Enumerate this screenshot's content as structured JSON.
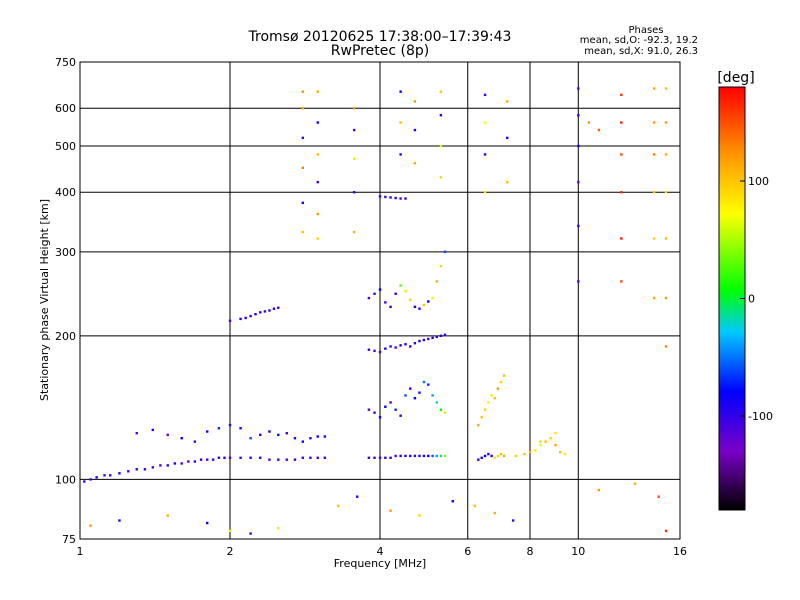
{
  "header": {
    "title_line1": "Tromsø 20120625 17:38:00–17:39:43",
    "title_line2": "RwPretec (8p)",
    "phase_title": "Phases",
    "phase_o": "mean, sd,O: -92.3, 19.2",
    "phase_x": "mean, sd,X:  91.0, 26.3"
  },
  "chart_data": {
    "type": "scatter",
    "title": "Tromsø 20120625 17:38:00–17:39:43",
    "subtitle": "RwPretec (8p)",
    "xlabel": "Frequency [MHz]",
    "ylabel": "Stationary phase Virtual Height [km]",
    "x_scale": "log",
    "y_scale": "log",
    "xlim": [
      1,
      16
    ],
    "ylim": [
      75,
      750
    ],
    "x_ticks": [
      1,
      2,
      4,
      6,
      8,
      10,
      16
    ],
    "y_ticks": [
      75,
      100,
      200,
      300,
      400,
      500,
      600,
      750
    ],
    "grid": true,
    "colorbar": {
      "label": "[deg]",
      "range": [
        -180,
        180
      ],
      "ticks": [
        100,
        0,
        -100
      ]
    },
    "series": [
      {
        "x": [
          1.02,
          1.05,
          1.08,
          1.12,
          1.15,
          1.2,
          1.25,
          1.3,
          1.35,
          1.4,
          1.45,
          1.5,
          1.55,
          1.6,
          1.65,
          1.7,
          1.75,
          1.8,
          1.85,
          1.9,
          1.95,
          2.0,
          2.1,
          2.2,
          2.3,
          2.4,
          2.5,
          2.6,
          2.7,
          2.8,
          2.9,
          3.0,
          3.1
        ],
        "y": [
          99,
          100,
          101,
          102,
          102,
          103,
          104,
          105,
          105,
          106,
          107,
          107,
          108,
          108,
          109,
          109,
          110,
          110,
          110,
          111,
          111,
          111,
          111,
          111,
          111,
          110,
          110,
          110,
          110,
          111,
          111,
          111,
          111
        ],
        "phase": [
          -110,
          -105,
          -100,
          -110,
          -108,
          -100,
          -112,
          -104,
          -98,
          -106,
          -110,
          -100,
          -95,
          -108,
          -112,
          -102,
          -100,
          -110,
          -104,
          -108,
          -100,
          -112,
          -106,
          -100,
          -104,
          -110,
          -102,
          -108,
          -100,
          -104,
          -106,
          -110,
          -100
        ]
      },
      {
        "x": [
          1.3,
          1.4,
          1.5,
          1.6,
          1.7,
          1.8,
          1.9,
          2.0,
          2.1,
          2.2,
          2.3,
          2.4,
          2.5,
          2.6,
          2.7,
          2.8,
          2.9,
          3.0,
          3.1
        ],
        "y": [
          125,
          127,
          124,
          122,
          120,
          126,
          128,
          130,
          128,
          122,
          124,
          126,
          124,
          125,
          122,
          120,
          122,
          123,
          123
        ],
        "phase": [
          -120,
          -90,
          -130,
          -80,
          -110,
          -95,
          -70,
          -100,
          -85,
          -60,
          -100,
          -90,
          -75,
          -110,
          -95,
          -85,
          -100,
          -80,
          -90
        ]
      },
      {
        "x": [
          2.0,
          2.1,
          2.15,
          2.2,
          2.25,
          2.3,
          2.35,
          2.4,
          2.45,
          2.5
        ],
        "y": [
          215,
          217,
          218,
          220,
          222,
          224,
          225,
          226,
          228,
          229
        ],
        "phase": [
          -110,
          -100,
          -95,
          -105,
          -90,
          -100,
          -110,
          -95,
          -100,
          -105
        ]
      },
      {
        "x": [
          3.8,
          3.9,
          4.0,
          4.1,
          4.2,
          4.3,
          4.4,
          4.5,
          4.6,
          4.7,
          4.8,
          4.9,
          5.0,
          5.1,
          5.2,
          5.3,
          5.4
        ],
        "y": [
          111,
          111,
          111,
          111,
          111,
          112,
          112,
          112,
          112,
          112,
          112,
          112,
          112,
          112,
          112,
          112,
          112
        ],
        "phase": [
          -110,
          -100,
          -105,
          -95,
          -100,
          -110,
          -100,
          -90,
          -105,
          -100,
          -95,
          -100,
          -80,
          -60,
          -40,
          -20,
          40
        ]
      },
      {
        "x": [
          3.8,
          3.9,
          4.0,
          4.1,
          4.2,
          4.3,
          4.4,
          4.5,
          4.6,
          4.7,
          4.8,
          4.9,
          5.0,
          5.1,
          5.2,
          5.3,
          5.4
        ],
        "y": [
          187,
          186,
          185,
          188,
          190,
          189,
          191,
          192,
          190,
          193,
          195,
          196,
          197,
          198,
          199,
          200,
          201
        ],
        "phase": [
          -100,
          -110,
          -105,
          -95,
          -100,
          -110,
          -100,
          -90,
          -105,
          -100,
          -95,
          -100,
          -105,
          -90,
          -100,
          -95,
          -100
        ]
      },
      {
        "x": [
          3.8,
          3.9,
          4.0,
          4.1,
          4.2,
          4.3,
          4.4,
          4.5,
          4.6,
          4.7,
          4.8,
          4.9,
          5.0,
          5.1,
          5.2,
          5.3,
          5.4
        ],
        "y": [
          240,
          245,
          250,
          235,
          230,
          245,
          255,
          248,
          238,
          230,
          228,
          232,
          236,
          240,
          260,
          280,
          300
        ],
        "phase": [
          -110,
          -100,
          -80,
          -105,
          -95,
          -100,
          30,
          60,
          90,
          -90,
          -100,
          100,
          -80,
          80,
          110,
          90,
          -60
        ]
      },
      {
        "x": [
          3.8,
          3.9,
          4.0,
          4.1,
          4.2,
          4.3,
          4.4,
          4.5,
          4.6,
          4.7,
          4.8,
          4.9,
          5.0,
          5.1,
          5.2,
          5.3,
          5.4
        ],
        "y": [
          140,
          138,
          135,
          142,
          145,
          140,
          136,
          150,
          155,
          148,
          152,
          160,
          158,
          150,
          145,
          140,
          138
        ],
        "phase": [
          -120,
          -100,
          -90,
          -80,
          -110,
          -70,
          -100,
          -60,
          -90,
          -80,
          -100,
          -50,
          -70,
          -40,
          -20,
          10,
          60
        ]
      },
      {
        "x": [
          4.0,
          4.1,
          4.2,
          4.3,
          4.4,
          4.5
        ],
        "y": [
          392,
          391,
          390,
          389,
          388,
          388
        ],
        "phase": [
          -100,
          -105,
          -95,
          -100,
          -110,
          -100
        ]
      },
      {
        "x": [
          6.3,
          6.4,
          6.5,
          6.6,
          6.7,
          6.8,
          6.9,
          7.0,
          7.1
        ],
        "y": [
          110,
          111,
          112,
          113,
          112,
          111,
          112,
          113,
          112
        ],
        "phase": [
          -100,
          -90,
          -80,
          -95,
          -100,
          80,
          90,
          100,
          110
        ]
      },
      {
        "x": [
          6.3,
          6.4,
          6.5,
          6.6,
          6.7,
          6.8,
          6.9,
          7.0,
          7.1
        ],
        "y": [
          130,
          135,
          140,
          145,
          150,
          148,
          155,
          160,
          165
        ],
        "phase": [
          110,
          100,
          90,
          80,
          60,
          100,
          120,
          90,
          100
        ]
      },
      {
        "x": [
          7.5,
          7.8,
          8.0,
          8.2,
          8.4,
          8.6,
          8.8,
          9.0,
          9.2,
          9.4
        ],
        "y": [
          112,
          113,
          114,
          115,
          118,
          120,
          122,
          118,
          114,
          113
        ],
        "phase": [
          90,
          100,
          110,
          80,
          60,
          100,
          90,
          110,
          100,
          80
        ]
      },
      {
        "x": [
          2.8,
          2.8,
          2.8,
          2.8,
          2.8,
          2.8,
          3.0,
          3.0,
          3.0,
          3.0,
          3.0,
          3.0
        ],
        "y": [
          650,
          600,
          520,
          450,
          380,
          330,
          650,
          560,
          480,
          420,
          360,
          320
        ],
        "phase": [
          120,
          110,
          -100,
          130,
          -90,
          100,
          110,
          -80,
          100,
          -110,
          120,
          90
        ]
      },
      {
        "x": [
          3.55,
          3.55,
          3.55,
          3.55,
          3.55,
          4.4,
          4.4,
          4.4,
          4.7,
          4.7,
          4.7,
          5.3,
          5.3,
          5.3,
          5.3,
          6.5,
          6.5,
          6.5,
          6.5,
          7.2,
          7.2,
          7.2
        ],
        "y": [
          600,
          540,
          470,
          400,
          330,
          650,
          560,
          480,
          620,
          540,
          460,
          650,
          580,
          500,
          430,
          640,
          560,
          480,
          400,
          620,
          520,
          420
        ],
        "phase": [
          120,
          -110,
          60,
          -100,
          110,
          -80,
          100,
          -100,
          120,
          -90,
          110,
          100,
          -100,
          60,
          90,
          -110,
          70,
          -100,
          80,
          110,
          -90,
          100
        ]
      },
      {
        "x": [
          10.0,
          10.0,
          10.0,
          10.0,
          10.0,
          10.0,
          10.5,
          11.0,
          12.2,
          12.2,
          12.2,
          12.2,
          12.2,
          12.2,
          14.2,
          14.2,
          14.2,
          14.2,
          14.2,
          14.2,
          15.0,
          15.0,
          15.0,
          15.0,
          15.0,
          15.0,
          15.0
        ],
        "y": [
          660,
          580,
          500,
          420,
          340,
          260,
          560,
          540,
          640,
          560,
          480,
          400,
          320,
          260,
          660,
          560,
          480,
          400,
          320,
          240,
          660,
          560,
          480,
          400,
          320,
          240,
          190
        ],
        "phase": [
          -110,
          -100,
          -90,
          -120,
          -100,
          -110,
          120,
          140,
          160,
          170,
          150,
          160,
          170,
          150,
          110,
          120,
          130,
          100,
          90,
          110,
          100,
          120,
          110,
          90,
          100,
          120,
          130
        ]
      },
      {
        "x": [
          1.05,
          1.2,
          1.5,
          1.8,
          2.0,
          2.2,
          2.5,
          3.3,
          3.6,
          4.2,
          4.8,
          5.6,
          6.2,
          6.8,
          7.4,
          8.4,
          9.0,
          11.0,
          13.0,
          14.5,
          15.0
        ],
        "y": [
          80,
          82,
          84,
          81,
          78,
          77,
          79,
          88,
          92,
          86,
          84,
          90,
          88,
          85,
          82,
          120,
          125,
          95,
          98,
          92,
          78
        ],
        "phase": [
          120,
          -100,
          110,
          -90,
          60,
          -110,
          80,
          100,
          -100,
          120,
          90,
          -80,
          100,
          110,
          -100,
          90,
          80,
          120,
          110,
          150,
          160
        ]
      }
    ]
  }
}
